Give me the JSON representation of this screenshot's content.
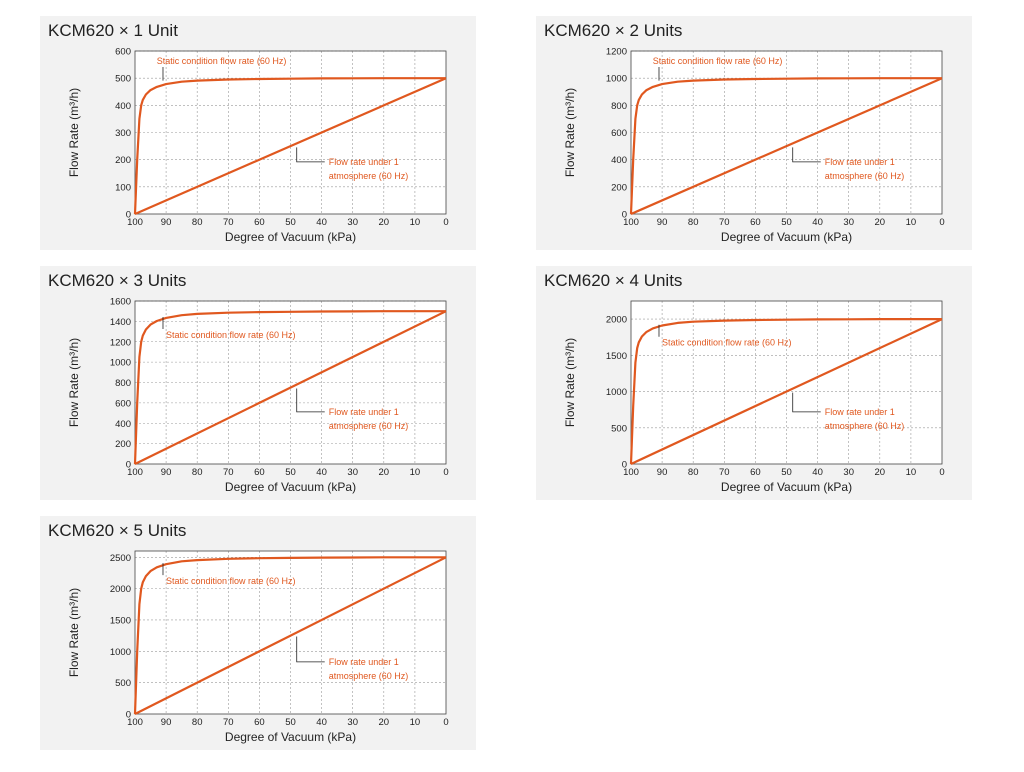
{
  "chart_data": [
    {
      "type": "line",
      "title": "KCM620 × 1 Unit",
      "xlabel": "Degree of Vacuum (kPa)",
      "ylabel": "Flow Rate (m³/h)",
      "xlim": [
        100,
        0
      ],
      "ylim": [
        0,
        600
      ],
      "xticks": [
        100,
        90,
        80,
        70,
        60,
        50,
        40,
        30,
        20,
        10,
        0
      ],
      "yticks": [
        0,
        100,
        200,
        300,
        400,
        500,
        600
      ],
      "grid": true,
      "color": "#e0581f",
      "annotations": [
        {
          "text": "Static condition flow rate (60 Hz)",
          "lines": [
            "Static condition flow rate (60 Hz)"
          ]
        },
        {
          "text": "Flow rate under 1 atmosphere (60 Hz)",
          "lines": [
            "Flow rate under 1",
            "atmosphere (60 Hz)"
          ]
        }
      ],
      "series": [
        {
          "x": [
            100,
            99.3,
            98.6,
            98,
            97.5,
            96.5,
            95,
            93,
            90,
            85,
            80,
            70,
            60,
            50,
            40,
            30,
            20,
            10,
            0
          ],
          "y": [
            0,
            200,
            350,
            400,
            420,
            440,
            456,
            468,
            478,
            487,
            491,
            495,
            497,
            498,
            499,
            499.5,
            500,
            500,
            500
          ]
        },
        {
          "x": [
            100,
            0
          ],
          "y": [
            0,
            500
          ]
        }
      ]
    },
    {
      "type": "line",
      "title": "KCM620 × 2 Units",
      "xlabel": "Degree of Vacuum (kPa)",
      "ylabel": "Flow Rate (m³/h)",
      "xlim": [
        100,
        0
      ],
      "ylim": [
        0,
        1200
      ],
      "xticks": [
        100,
        90,
        80,
        70,
        60,
        50,
        40,
        30,
        20,
        10,
        0
      ],
      "yticks": [
        0,
        200,
        400,
        600,
        800,
        1000,
        1200
      ],
      "grid": true,
      "color": "#e0581f",
      "annotations": [
        {
          "text": "Static condition flow rate (60 Hz)",
          "lines": [
            "Static condition flow rate (60 Hz)"
          ]
        },
        {
          "text": "Flow rate under 1 atmosphere (60 Hz)",
          "lines": [
            "Flow rate under 1",
            "atmosphere (60 Hz)"
          ]
        }
      ],
      "series": [
        {
          "x": [
            100,
            99.3,
            98.6,
            98,
            97.5,
            96.5,
            95,
            93,
            90,
            85,
            80,
            70,
            60,
            50,
            40,
            30,
            20,
            10,
            0
          ],
          "y": [
            0,
            400,
            700,
            800,
            840,
            880,
            912,
            936,
            956,
            974,
            982,
            990,
            994,
            996,
            998,
            999,
            1000,
            1000,
            1000
          ]
        },
        {
          "x": [
            100,
            0
          ],
          "y": [
            0,
            1000
          ]
        }
      ]
    },
    {
      "type": "line",
      "title": "KCM620 × 3 Units",
      "xlabel": "Degree of Vacuum (kPa)",
      "ylabel": "Flow Rate (m³/h)",
      "xlim": [
        100,
        0
      ],
      "ylim": [
        0,
        1600
      ],
      "xticks": [
        100,
        90,
        80,
        70,
        60,
        50,
        40,
        30,
        20,
        10,
        0
      ],
      "yticks": [
        0,
        200,
        400,
        600,
        800,
        1000,
        1200,
        1400,
        1600
      ],
      "grid": true,
      "color": "#e0581f",
      "annotations": [
        {
          "text": "Static condition flow rate (60 Hz)",
          "lines": [
            "Static condition flow rate (60 Hz)"
          ]
        },
        {
          "text": "Flow rate under 1 atmosphere (60 Hz)",
          "lines": [
            "Flow rate under 1",
            "atmosphere (60 Hz)"
          ]
        }
      ],
      "series": [
        {
          "x": [
            100,
            99.3,
            98.6,
            98,
            97.5,
            96.5,
            95,
            93,
            90,
            85,
            80,
            70,
            60,
            50,
            40,
            30,
            20,
            10,
            0
          ],
          "y": [
            0,
            600,
            1050,
            1200,
            1260,
            1320,
            1368,
            1404,
            1434,
            1461,
            1473,
            1485,
            1491,
            1494,
            1497,
            1498,
            1500,
            1500,
            1500
          ]
        },
        {
          "x": [
            100,
            0
          ],
          "y": [
            0,
            1500
          ]
        }
      ]
    },
    {
      "type": "line",
      "title": "KCM620 × 4 Units",
      "xlabel": "Degree of Vacuum (kPa)",
      "ylabel": "Flow Rate (m³/h)",
      "xlim": [
        100,
        0
      ],
      "ylim": [
        0,
        2250
      ],
      "xticks": [
        100,
        90,
        80,
        70,
        60,
        50,
        40,
        30,
        20,
        10,
        0
      ],
      "yticks": [
        0,
        500,
        1000,
        1500,
        2000
      ],
      "grid": true,
      "color": "#e0581f",
      "annotations": [
        {
          "text": "Static condition flow rate (60 Hz)",
          "lines": [
            "Static condition flow rate (60 Hz)"
          ]
        },
        {
          "text": "Flow rate under 1 atmosphere (60 Hz)",
          "lines": [
            "Flow rate under 1",
            "atmosphere (60 Hz)"
          ]
        }
      ],
      "series": [
        {
          "x": [
            100,
            99.3,
            98.6,
            98,
            97.5,
            96.5,
            95,
            93,
            90,
            85,
            80,
            70,
            60,
            50,
            40,
            30,
            20,
            10,
            0
          ],
          "y": [
            0,
            800,
            1400,
            1600,
            1680,
            1760,
            1824,
            1872,
            1912,
            1948,
            1964,
            1980,
            1988,
            1992,
            1996,
            1998,
            2000,
            2000,
            2000
          ]
        },
        {
          "x": [
            100,
            0
          ],
          "y": [
            0,
            2000
          ]
        }
      ]
    },
    {
      "type": "line",
      "title": "KCM620 × 5 Units",
      "xlabel": "Degree of Vacuum (kPa)",
      "ylabel": "Flow Rate (m³/h)",
      "xlim": [
        100,
        0
      ],
      "ylim": [
        0,
        2600
      ],
      "xticks": [
        100,
        90,
        80,
        70,
        60,
        50,
        40,
        30,
        20,
        10,
        0
      ],
      "yticks": [
        0,
        500,
        1000,
        1500,
        2000,
        2500
      ],
      "grid": true,
      "color": "#e0581f",
      "annotations": [
        {
          "text": "Static condition flow rate (60 Hz)",
          "lines": [
            "Static condition flow rate (60 Hz)"
          ]
        },
        {
          "text": "Flow rate under 1 atmosphere (60 Hz)",
          "lines": [
            "Flow rate under 1",
            "atmosphere (60 Hz)"
          ]
        }
      ],
      "series": [
        {
          "x": [
            100,
            99.3,
            98.6,
            98,
            97.5,
            96.5,
            95,
            93,
            90,
            85,
            80,
            70,
            60,
            50,
            40,
            30,
            20,
            10,
            0
          ],
          "y": [
            0,
            1000,
            1750,
            2000,
            2100,
            2200,
            2280,
            2340,
            2390,
            2435,
            2455,
            2475,
            2485,
            2490,
            2495,
            2497,
            2500,
            2500,
            2500
          ]
        },
        {
          "x": [
            100,
            0
          ],
          "y": [
            0,
            2500
          ]
        }
      ]
    }
  ]
}
